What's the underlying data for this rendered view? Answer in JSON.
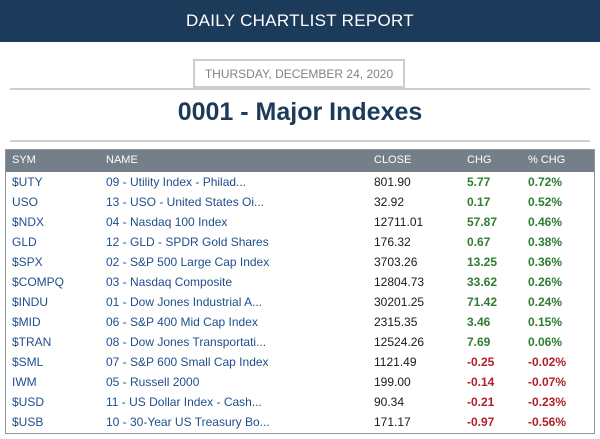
{
  "header": {
    "title": "DAILY CHARTLIST REPORT"
  },
  "report": {
    "date": "THURSDAY, DECEMBER 24, 2020",
    "list_title": "0001 - Major Indexes"
  },
  "colors": {
    "header_bg": "#1c3b5a",
    "positive": "#2e7d32",
    "negative": "#b0202a",
    "link": "#1f4e8c"
  },
  "table": {
    "columns": [
      "SYM",
      "NAME",
      "CLOSE",
      "CHG",
      "% CHG"
    ],
    "rows": [
      {
        "sym": "$UTY",
        "name": "09 - Utility Index - Philad...",
        "close": "801.90",
        "chg": "5.77",
        "pct": "0.72%",
        "dir": "pos"
      },
      {
        "sym": "USO",
        "name": "13 - USO - United States Oi...",
        "close": "32.92",
        "chg": "0.17",
        "pct": "0.52%",
        "dir": "pos"
      },
      {
        "sym": "$NDX",
        "name": "04 - Nasdaq 100 Index",
        "close": "12711.01",
        "chg": "57.87",
        "pct": "0.46%",
        "dir": "pos"
      },
      {
        "sym": "GLD",
        "name": "12 - GLD - SPDR Gold Shares",
        "close": "176.32",
        "chg": "0.67",
        "pct": "0.38%",
        "dir": "pos"
      },
      {
        "sym": "$SPX",
        "name": "02 - S&P 500 Large Cap Index",
        "close": "3703.26",
        "chg": "13.25",
        "pct": "0.36%",
        "dir": "pos"
      },
      {
        "sym": "$COMPQ",
        "name": "03 - Nasdaq Composite",
        "close": "12804.73",
        "chg": "33.62",
        "pct": "0.26%",
        "dir": "pos"
      },
      {
        "sym": "$INDU",
        "name": "01 - Dow Jones Industrial A...",
        "close": "30201.25",
        "chg": "71.42",
        "pct": "0.24%",
        "dir": "pos"
      },
      {
        "sym": "$MID",
        "name": "06 - S&P 400 Mid Cap Index",
        "close": "2315.35",
        "chg": "3.46",
        "pct": "0.15%",
        "dir": "pos"
      },
      {
        "sym": "$TRAN",
        "name": "08 - Dow Jones Transportati...",
        "close": "12524.26",
        "chg": "7.69",
        "pct": "0.06%",
        "dir": "pos"
      },
      {
        "sym": "$SML",
        "name": "07 - S&P 600 Small Cap Index",
        "close": "1121.49",
        "chg": "-0.25",
        "pct": "-0.02%",
        "dir": "neg"
      },
      {
        "sym": "IWM",
        "name": "05 - Russell 2000",
        "close": "199.00",
        "chg": "-0.14",
        "pct": "-0.07%",
        "dir": "neg"
      },
      {
        "sym": "$USD",
        "name": "11 - US Dollar Index - Cash...",
        "close": "90.34",
        "chg": "-0.21",
        "pct": "-0.23%",
        "dir": "neg"
      },
      {
        "sym": "$USB",
        "name": "10 - 30-Year US Treasury Bo...",
        "close": "171.17",
        "chg": "-0.97",
        "pct": "-0.56%",
        "dir": "neg"
      }
    ]
  }
}
